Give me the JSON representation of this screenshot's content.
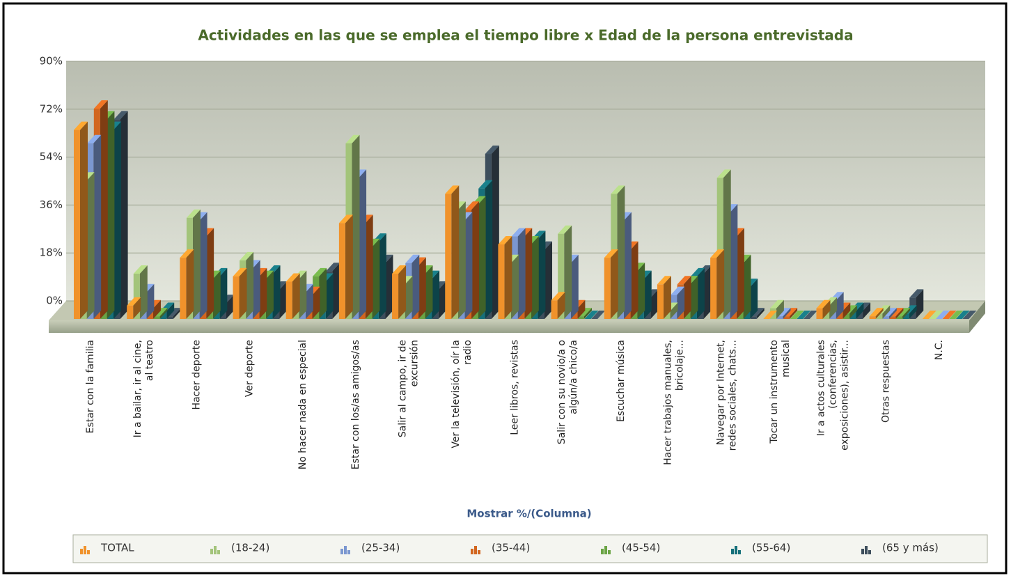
{
  "chart_data": {
    "type": "bar3d",
    "title": "Actividades en las que se emplea el tiempo libre  x  Edad de la persona entrevistada",
    "x_label": "Mostrar %/(Columna)",
    "categories": [
      "Estar con la familia",
      "Ir a bailar, ir al cine, al teatro",
      "Hacer deporte",
      "Ver deporte",
      "No hacer nada en especial",
      "Estar con los/as amigos/as",
      "Salir al campo, ir de excursión",
      "Ver la televisión, oír la radio",
      "Leer libros, revistas",
      "Salir con su novio/a o algún/a chico/a",
      "Escuchar música",
      "Hacer trabajos manuales, bricolaje...",
      "Navegar por Internet, redes sociales, chats...",
      "Tocar un instrumento musical",
      "Ir a actos culturales (conferencias, exposiciones), asistir...",
      "Otras respuestas",
      "N.C."
    ],
    "series": [
      {
        "name": "TOTAL",
        "color": "#f0922b",
        "values": [
          71,
          5,
          23,
          16,
          14,
          36,
          17,
          47,
          28,
          7,
          23,
          13,
          23,
          0,
          4,
          1,
          0
        ]
      },
      {
        "name": "(18-24)",
        "color": "#a3c47a",
        "values": [
          52,
          17,
          38,
          22,
          15,
          66,
          13,
          41,
          21,
          32,
          47,
          3,
          53,
          4,
          5,
          2,
          0
        ]
      },
      {
        "name": "(25-34)",
        "color": "#7b97d0",
        "values": [
          66,
          10,
          37,
          19,
          10,
          53,
          21,
          37,
          31,
          21,
          37,
          9,
          40,
          1,
          7,
          1,
          0
        ]
      },
      {
        "name": "(35-44)",
        "color": "#d2661f",
        "values": [
          79,
          4,
          31,
          16,
          9,
          36,
          20,
          41,
          31,
          4,
          26,
          13,
          31,
          1,
          3,
          1,
          0
        ]
      },
      {
        "name": "(45-54)",
        "color": "#6aa444",
        "values": [
          75,
          1,
          15,
          15,
          16,
          27,
          17,
          43,
          28,
          1,
          18,
          13,
          21,
          0,
          2,
          1,
          0
        ]
      },
      {
        "name": "(55-64)",
        "color": "#16707a",
        "values": [
          71,
          3,
          16,
          17,
          14,
          29,
          15,
          49,
          30,
          0,
          15,
          16,
          12,
          0,
          3,
          2,
          0
        ]
      },
      {
        "name": "(65 y más)",
        "color": "#3d4e5c",
        "values": [
          75,
          1,
          6,
          11,
          18,
          21,
          11,
          62,
          26,
          0,
          8,
          17,
          1,
          0,
          3,
          8,
          0
        ]
      }
    ],
    "ylim": [
      0,
      90
    ],
    "yticks": [
      {
        "value": 0,
        "label": "0%"
      },
      {
        "value": 18,
        "label": "18%"
      },
      {
        "value": 36,
        "label": "36%"
      },
      {
        "value": 54,
        "label": "54%"
      },
      {
        "value": 72,
        "label": "72%"
      },
      {
        "value": 90,
        "label": "90%"
      }
    ],
    "grid": true
  }
}
